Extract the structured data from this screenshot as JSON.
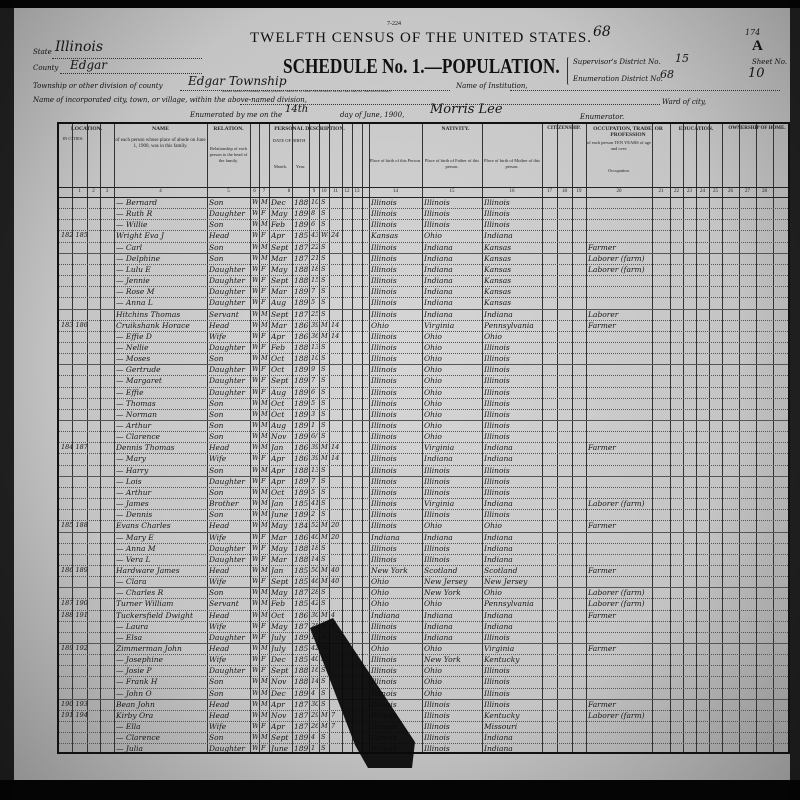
{
  "form_number": "7-224",
  "title": "TWELFTH CENSUS OF THE UNITED STATES.",
  "schedule_title": "SCHEDULE No. 1.—POPULATION.",
  "corner_marks": {
    "sheet_letter": "A",
    "stamp_number": "174",
    "top_number": "68"
  },
  "header": {
    "state_label": "State",
    "state": "Illinois",
    "county_label": "County",
    "county": "Edgar",
    "township_label": "Township or other division of county",
    "township": "Edgar Township",
    "township_note": "(Insert name of township, town, precinct, district, or other civil division, as the case may be. See instructions.)",
    "institution_label": "Name of Institution,",
    "incorporated_label": "Name of incorporated city, town, or village, within the above-named division,",
    "ward_label": "Ward of city,",
    "enumerated_prefix": "Enumerated by me on the",
    "day": "14th",
    "enumerated_suffix": "day of June, 1900,",
    "enumerator": "Morris Lee",
    "enumerator_label": "Enumerator.",
    "supervisor_label": "Supervisor's District No.",
    "supervisor_district": "15",
    "enumeration_label": "Enumeration District No.",
    "enumeration_district": "68",
    "sheet_label": "Sheet No.",
    "sheet_no": "10"
  },
  "column_groups": {
    "location": "LOCATION.",
    "in_cities": "IN CITIES.",
    "name": "NAME",
    "name_desc": "of each person whose place of abode on June 1, 1900, was in this family.",
    "relation": "RELATION.",
    "relation_desc": "Relationship of each person to the head of the family.",
    "personal": "PERSONAL DESCRIPTION.",
    "date_of_birth": "DATE OF BIRTH",
    "month": "Month.",
    "year": "Year.",
    "nativity": "NATIVITY.",
    "birth_person": "Place of birth of this Person.",
    "birth_father": "Place of birth of Father of this person.",
    "birth_mother": "Place of birth of Mother of this person.",
    "citizenship": "CITIZENSHIP.",
    "occupation": "OCCUPATION, TRADE, OR PROFESSION",
    "occupation_desc": "of each person TEN YEARS of age and over.",
    "occupation_col": "Occupation.",
    "education": "EDUCATION.",
    "ownership": "OWNERSHIP OF HOME."
  },
  "column_numbers": [
    "1",
    "2",
    "3",
    "4",
    "5",
    "6",
    "7",
    "8",
    "9",
    "10",
    "11",
    "12",
    "13",
    "14",
    "15",
    "16",
    "17",
    "18",
    "19",
    "20",
    "21",
    "22",
    "23",
    "24",
    "25",
    "26",
    "27",
    "28"
  ],
  "rows": [
    {
      "d": "",
      "name": "— Bernard",
      "rel": "Son",
      "race": "W",
      "sex": "M",
      "mo": "Dec",
      "yr": "1889",
      "age": "10",
      "mar": "S",
      "ym": "",
      "bp": "Illinois",
      "fp": "Illinois",
      "mp": "Illinois",
      "occ": ""
    },
    {
      "d": "",
      "name": "— Ruth R",
      "rel": "Daughter",
      "race": "W",
      "sex": "F",
      "mo": "May",
      "yr": "1892",
      "age": "8",
      "mar": "S",
      "ym": "",
      "bp": "Illinois",
      "fp": "Illinois",
      "mp": "Illinois",
      "occ": ""
    },
    {
      "d": "",
      "name": "— Willie",
      "rel": "Son",
      "race": "W",
      "sex": "M",
      "mo": "Feb",
      "yr": "1893",
      "age": "6",
      "mar": "S",
      "ym": "",
      "bp": "Illinois",
      "fp": "Illinois",
      "mp": "Illinois",
      "occ": ""
    },
    {
      "d": "182 185",
      "name": "Wright Eva J",
      "rel": "Head",
      "race": "W",
      "sex": "F",
      "mo": "Apr",
      "yr": "1857",
      "age": "43",
      "mar": "Wd",
      "ym": "24",
      "bp": "Kansas",
      "fp": "Ohio",
      "mp": "Indiana",
      "occ": ""
    },
    {
      "d": "",
      "name": "— Carl",
      "rel": "Son",
      "race": "W",
      "sex": "M",
      "mo": "Sept",
      "yr": "1877",
      "age": "22",
      "mar": "S",
      "ym": "",
      "bp": "Illinois",
      "fp": "Indiana",
      "mp": "Kansas",
      "occ": "Farmer"
    },
    {
      "d": "",
      "name": "— Delphine",
      "rel": "Son",
      "race": "W",
      "sex": "M",
      "mo": "Mar",
      "yr": "1879",
      "age": "21",
      "mar": "S",
      "ym": "",
      "bp": "Illinois",
      "fp": "Indiana",
      "mp": "Kansas",
      "occ": "Laborer (farm)"
    },
    {
      "d": "",
      "name": "— Lulu E",
      "rel": "Daughter",
      "race": "W",
      "sex": "F",
      "mo": "May",
      "yr": "1882",
      "age": "18",
      "mar": "S",
      "ym": "",
      "bp": "Illinois",
      "fp": "Indiana",
      "mp": "Kansas",
      "occ": "Laborer (farm)"
    },
    {
      "d": "",
      "name": "— Jennie",
      "rel": "Daughter",
      "race": "W",
      "sex": "F",
      "mo": "Sept",
      "yr": "1884",
      "age": "15",
      "mar": "S",
      "ym": "",
      "bp": "Illinois",
      "fp": "Indiana",
      "mp": "Kansas",
      "occ": ""
    },
    {
      "d": "",
      "name": "— Rose M",
      "rel": "Daughter",
      "race": "W",
      "sex": "F",
      "mo": "Mar",
      "yr": "1892",
      "age": "7",
      "mar": "S",
      "ym": "",
      "bp": "Illinois",
      "fp": "Indiana",
      "mp": "Kansas",
      "occ": ""
    },
    {
      "d": "",
      "name": "— Anna L",
      "rel": "Daughter",
      "race": "W",
      "sex": "F",
      "mo": "Aug",
      "yr": "1894",
      "age": "5",
      "mar": "S",
      "ym": "",
      "bp": "Illinois",
      "fp": "Indiana",
      "mp": "Kansas",
      "occ": ""
    },
    {
      "d": "",
      "name": "Hitchins Thomas",
      "rel": "Servant",
      "race": "W",
      "sex": "M",
      "mo": "Sept",
      "yr": "1874",
      "age": "25",
      "mar": "S",
      "ym": "",
      "bp": "Illinois",
      "fp": "Indiana",
      "mp": "Indiana",
      "occ": "Laborer"
    },
    {
      "d": "183 186",
      "name": "Cruikshank Horace",
      "rel": "Head",
      "race": "W",
      "sex": "M",
      "mo": "Mar",
      "yr": "1861",
      "age": "39",
      "mar": "M",
      "ym": "14",
      "bp": "Ohio",
      "fp": "Virginia",
      "mp": "Pennsylvania",
      "occ": "Farmer"
    },
    {
      "d": "",
      "name": "— Effie D",
      "rel": "Wife",
      "race": "W",
      "sex": "F",
      "mo": "Apr",
      "yr": "1864",
      "age": "36",
      "mar": "M",
      "ym": "14",
      "bp": "Illinois",
      "fp": "Ohio",
      "mp": "Ohio",
      "occ": ""
    },
    {
      "d": "",
      "name": "— Nellie",
      "rel": "Daughter",
      "race": "W",
      "sex": "F",
      "mo": "Feb",
      "yr": "1887",
      "age": "13",
      "mar": "S",
      "ym": "",
      "bp": "Illinois",
      "fp": "Ohio",
      "mp": "Illinois",
      "occ": ""
    },
    {
      "d": "",
      "name": "— Moses",
      "rel": "Son",
      "race": "W",
      "sex": "M",
      "mo": "Oct",
      "yr": "1889",
      "age": "10",
      "mar": "S",
      "ym": "",
      "bp": "Illinois",
      "fp": "Ohio",
      "mp": "Illinois",
      "occ": ""
    },
    {
      "d": "",
      "name": "— Gertrude",
      "rel": "Daughter",
      "race": "W",
      "sex": "F",
      "mo": "Oct",
      "yr": "1890",
      "age": "9",
      "mar": "S",
      "ym": "",
      "bp": "Illinois",
      "fp": "Ohio",
      "mp": "Illinois",
      "occ": ""
    },
    {
      "d": "",
      "name": "— Margaret",
      "rel": "Daughter",
      "race": "W",
      "sex": "F",
      "mo": "Sept",
      "yr": "1892",
      "age": "7",
      "mar": "S",
      "ym": "",
      "bp": "Illinois",
      "fp": "Ohio",
      "mp": "Illinois",
      "occ": ""
    },
    {
      "d": "",
      "name": "— Effie",
      "rel": "Daughter",
      "race": "W",
      "sex": "F",
      "mo": "Aug",
      "yr": "1893",
      "age": "6",
      "mar": "S",
      "ym": "",
      "bp": "Illinois",
      "fp": "Ohio",
      "mp": "Illinois",
      "occ": ""
    },
    {
      "d": "",
      "name": "— Thomas",
      "rel": "Son",
      "race": "W",
      "sex": "M",
      "mo": "Oct",
      "yr": "1894",
      "age": "5",
      "mar": "S",
      "ym": "",
      "bp": "Illinois",
      "fp": "Ohio",
      "mp": "Illinois",
      "occ": ""
    },
    {
      "d": "",
      "name": "— Norman",
      "rel": "Son",
      "race": "W",
      "sex": "M",
      "mo": "Oct",
      "yr": "1896",
      "age": "3",
      "mar": "S",
      "ym": "",
      "bp": "Illinois",
      "fp": "Ohio",
      "mp": "Illinois",
      "occ": ""
    },
    {
      "d": "",
      "name": "— Arthur",
      "rel": "Son",
      "race": "W",
      "sex": "M",
      "mo": "Aug",
      "yr": "1898",
      "age": "1",
      "mar": "S",
      "ym": "",
      "bp": "Illinois",
      "fp": "Ohio",
      "mp": "Illinois",
      "occ": ""
    },
    {
      "d": "",
      "name": "— Clarence",
      "rel": "Son",
      "race": "W",
      "sex": "M",
      "mo": "Nov",
      "yr": "1899",
      "age": "6/12",
      "mar": "S",
      "ym": "",
      "bp": "Illinois",
      "fp": "Ohio",
      "mp": "Illinois",
      "occ": ""
    },
    {
      "d": "184 187",
      "name": "Dennis Thomas",
      "rel": "Head",
      "race": "W",
      "sex": "M",
      "mo": "Jan",
      "yr": "1861",
      "age": "39",
      "mar": "M",
      "ym": "14",
      "bp": "Illinois",
      "fp": "Virginia",
      "mp": "Indiana",
      "occ": "Farmer"
    },
    {
      "d": "",
      "name": "— Mary",
      "rel": "Wife",
      "race": "W",
      "sex": "F",
      "mo": "Apr",
      "yr": "1861",
      "age": "39",
      "mar": "M",
      "ym": "14",
      "bp": "Illinois",
      "fp": "Indiana",
      "mp": "Indiana",
      "occ": ""
    },
    {
      "d": "",
      "name": "— Harry",
      "rel": "Son",
      "race": "W",
      "sex": "M",
      "mo": "Apr",
      "yr": "1886",
      "age": "13",
      "mar": "S",
      "ym": "",
      "bp": "Illinois",
      "fp": "Illinois",
      "mp": "Illinois",
      "occ": ""
    },
    {
      "d": "",
      "name": "— Lois",
      "rel": "Daughter",
      "race": "W",
      "sex": "F",
      "mo": "Apr",
      "yr": "1893",
      "age": "7",
      "mar": "S",
      "ym": "",
      "bp": "Illinois",
      "fp": "Illinois",
      "mp": "Illinois",
      "occ": ""
    },
    {
      "d": "",
      "name": "— Arthur",
      "rel": "Son",
      "race": "W",
      "sex": "M",
      "mo": "Oct",
      "yr": "1894",
      "age": "5",
      "mar": "S",
      "ym": "",
      "bp": "Illinois",
      "fp": "Illinois",
      "mp": "Illinois",
      "occ": ""
    },
    {
      "d": "",
      "name": "— James",
      "rel": "Brother",
      "race": "W",
      "sex": "M",
      "mo": "Jan",
      "yr": "1858",
      "age": "41",
      "mar": "S",
      "ym": "",
      "bp": "Illinois",
      "fp": "Virginia",
      "mp": "Indiana",
      "occ": "Laborer (farm)"
    },
    {
      "d": "",
      "name": "— Dennis",
      "rel": "Son",
      "race": "W",
      "sex": "M",
      "mo": "June",
      "yr": "1898",
      "age": "2",
      "mar": "S",
      "ym": "",
      "bp": "Illinois",
      "fp": "Illinois",
      "mp": "Illinois",
      "occ": ""
    },
    {
      "d": "185 188",
      "name": "Evans Charles",
      "rel": "Head",
      "race": "W",
      "sex": "M",
      "mo": "May",
      "yr": "1848",
      "age": "52",
      "mar": "M",
      "ym": "20",
      "bp": "Illinois",
      "fp": "Ohio",
      "mp": "Ohio",
      "occ": "Farmer"
    },
    {
      "d": "",
      "name": "— Mary E",
      "rel": "Wife",
      "race": "W",
      "sex": "F",
      "mo": "Mar",
      "yr": "1860",
      "age": "40",
      "mar": "M",
      "ym": "20",
      "bp": "Indiana",
      "fp": "Indiana",
      "mp": "Indiana",
      "occ": ""
    },
    {
      "d": "",
      "name": "— Anna M",
      "rel": "Daughter",
      "race": "W",
      "sex": "F",
      "mo": "May",
      "yr": "1882",
      "age": "18",
      "mar": "S",
      "ym": "",
      "bp": "Illinois",
      "fp": "Illinois",
      "mp": "Indiana",
      "occ": ""
    },
    {
      "d": "",
      "name": "— Vera L",
      "rel": "Daughter",
      "race": "W",
      "sex": "F",
      "mo": "Mar",
      "yr": "1886",
      "age": "14",
      "mar": "S",
      "ym": "",
      "bp": "Illinois",
      "fp": "Illinois",
      "mp": "Indiana",
      "occ": ""
    },
    {
      "d": "186 189",
      "name": "Hardware James",
      "rel": "Head",
      "race": "W",
      "sex": "M",
      "mo": "Jan",
      "yr": "1850",
      "age": "50",
      "mar": "M",
      "ym": "40",
      "bp": "New York",
      "fp": "Scotland",
      "mp": "Scotland",
      "occ": "Farmer"
    },
    {
      "d": "",
      "name": "— Clara",
      "rel": "Wife",
      "race": "W",
      "sex": "F",
      "mo": "Sept",
      "yr": "1853",
      "age": "46",
      "mar": "M",
      "ym": "40",
      "bp": "Ohio",
      "fp": "New Jersey",
      "mp": "New Jersey",
      "occ": ""
    },
    {
      "d": "",
      "name": "— Charles R",
      "rel": "Son",
      "race": "W",
      "sex": "M",
      "mo": "May",
      "yr": "1872",
      "age": "28",
      "mar": "S",
      "ym": "",
      "bp": "Ohio",
      "fp": "New York",
      "mp": "Ohio",
      "occ": "Laborer (farm)"
    },
    {
      "d": "187 190",
      "name": "Turner William",
      "rel": "Servant",
      "race": "W",
      "sex": "M",
      "mo": "Feb",
      "yr": "1858",
      "age": "42",
      "mar": "S",
      "ym": "",
      "bp": "Ohio",
      "fp": "Ohio",
      "mp": "Pennsylvania",
      "occ": "Laborer (farm)"
    },
    {
      "d": "188 191",
      "name": "Tuckersfield Dwight",
      "rel": "Head",
      "race": "W",
      "sex": "M",
      "mo": "Oct",
      "yr": "1869",
      "age": "30",
      "mar": "M",
      "ym": "4",
      "bp": "Indiana",
      "fp": "Indiana",
      "mp": "Indiana",
      "occ": "Farmer"
    },
    {
      "d": "",
      "name": "— Laura",
      "rel": "Wife",
      "race": "W",
      "sex": "F",
      "mo": "May",
      "yr": "1875",
      "age": "25",
      "mar": "M",
      "ym": "4",
      "bp": "Illinois",
      "fp": "Indiana",
      "mp": "Indiana",
      "occ": ""
    },
    {
      "d": "",
      "name": "— Elsa",
      "rel": "Daughter",
      "race": "W",
      "sex": "F",
      "mo": "July",
      "yr": "1898",
      "age": "1",
      "mar": "S",
      "ym": "",
      "bp": "Illinois",
      "fp": "Indiana",
      "mp": "Illinois",
      "occ": ""
    },
    {
      "d": "189 192",
      "name": "Zimmerman John",
      "rel": "Head",
      "race": "W",
      "sex": "M",
      "mo": "July",
      "yr": "1857",
      "age": "42",
      "mar": "M",
      "ym": "",
      "bp": "Ohio",
      "fp": "Ohio",
      "mp": "Virginia",
      "occ": "Farmer"
    },
    {
      "d": "",
      "name": "— Josephine",
      "rel": "Wife",
      "race": "W",
      "sex": "F",
      "mo": "Dec",
      "yr": "1859",
      "age": "40",
      "mar": "M",
      "ym": "",
      "bp": "Illinois",
      "fp": "New York",
      "mp": "Kentucky",
      "occ": ""
    },
    {
      "d": "",
      "name": "— Josie P",
      "rel": "Daughter",
      "race": "W",
      "sex": "F",
      "mo": "Sept",
      "yr": "1883",
      "age": "16",
      "mar": "S",
      "ym": "",
      "bp": "Illinois",
      "fp": "Ohio",
      "mp": "Illinois",
      "occ": ""
    },
    {
      "d": "",
      "name": "— Frank H",
      "rel": "Son",
      "race": "W",
      "sex": "M",
      "mo": "Nov",
      "yr": "1885",
      "age": "14",
      "mar": "S",
      "ym": "",
      "bp": "Illinois",
      "fp": "Ohio",
      "mp": "Illinois",
      "occ": ""
    },
    {
      "d": "",
      "name": "— John O",
      "rel": "Son",
      "race": "W",
      "sex": "M",
      "mo": "Dec",
      "yr": "1895",
      "age": "4",
      "mar": "S",
      "ym": "",
      "bp": "Illinois",
      "fp": "Ohio",
      "mp": "Illinois",
      "occ": ""
    },
    {
      "d": "190 193",
      "name": "Bean John",
      "rel": "Head",
      "race": "W",
      "sex": "M",
      "mo": "Apr",
      "yr": "1870",
      "age": "30",
      "mar": "S",
      "ym": "",
      "bp": "Illinois",
      "fp": "Illinois",
      "mp": "Illinois",
      "occ": "Farmer"
    },
    {
      "d": "191 194",
      "name": "Kirby Ora",
      "rel": "Head",
      "race": "W",
      "sex": "M",
      "mo": "Nov",
      "yr": "1870",
      "age": "29",
      "mar": "M",
      "ym": "7",
      "bp": "Illinois",
      "fp": "Illinois",
      "mp": "Kentucky",
      "occ": "Laborer (farm)"
    },
    {
      "d": "",
      "name": "— Ella",
      "rel": "Wife",
      "race": "W",
      "sex": "F",
      "mo": "Apr",
      "yr": "1874",
      "age": "26",
      "mar": "M",
      "ym": "7",
      "bp": "Illinois",
      "fp": "Illinois",
      "mp": "Missouri",
      "occ": ""
    },
    {
      "d": "",
      "name": "— Clarence",
      "rel": "Son",
      "race": "W",
      "sex": "M",
      "mo": "Sept",
      "yr": "1895",
      "age": "4",
      "mar": "S",
      "ym": "",
      "bp": "Illinois",
      "fp": "Illinois",
      "mp": "Indiana",
      "occ": ""
    },
    {
      "d": "",
      "name": "— Julia",
      "rel": "Daughter",
      "race": "W",
      "sex": "F",
      "mo": "June",
      "yr": "1898",
      "age": "1",
      "mar": "S",
      "ym": "",
      "bp": "Illinois",
      "fp": "Illinois",
      "mp": "Indiana",
      "occ": ""
    }
  ]
}
